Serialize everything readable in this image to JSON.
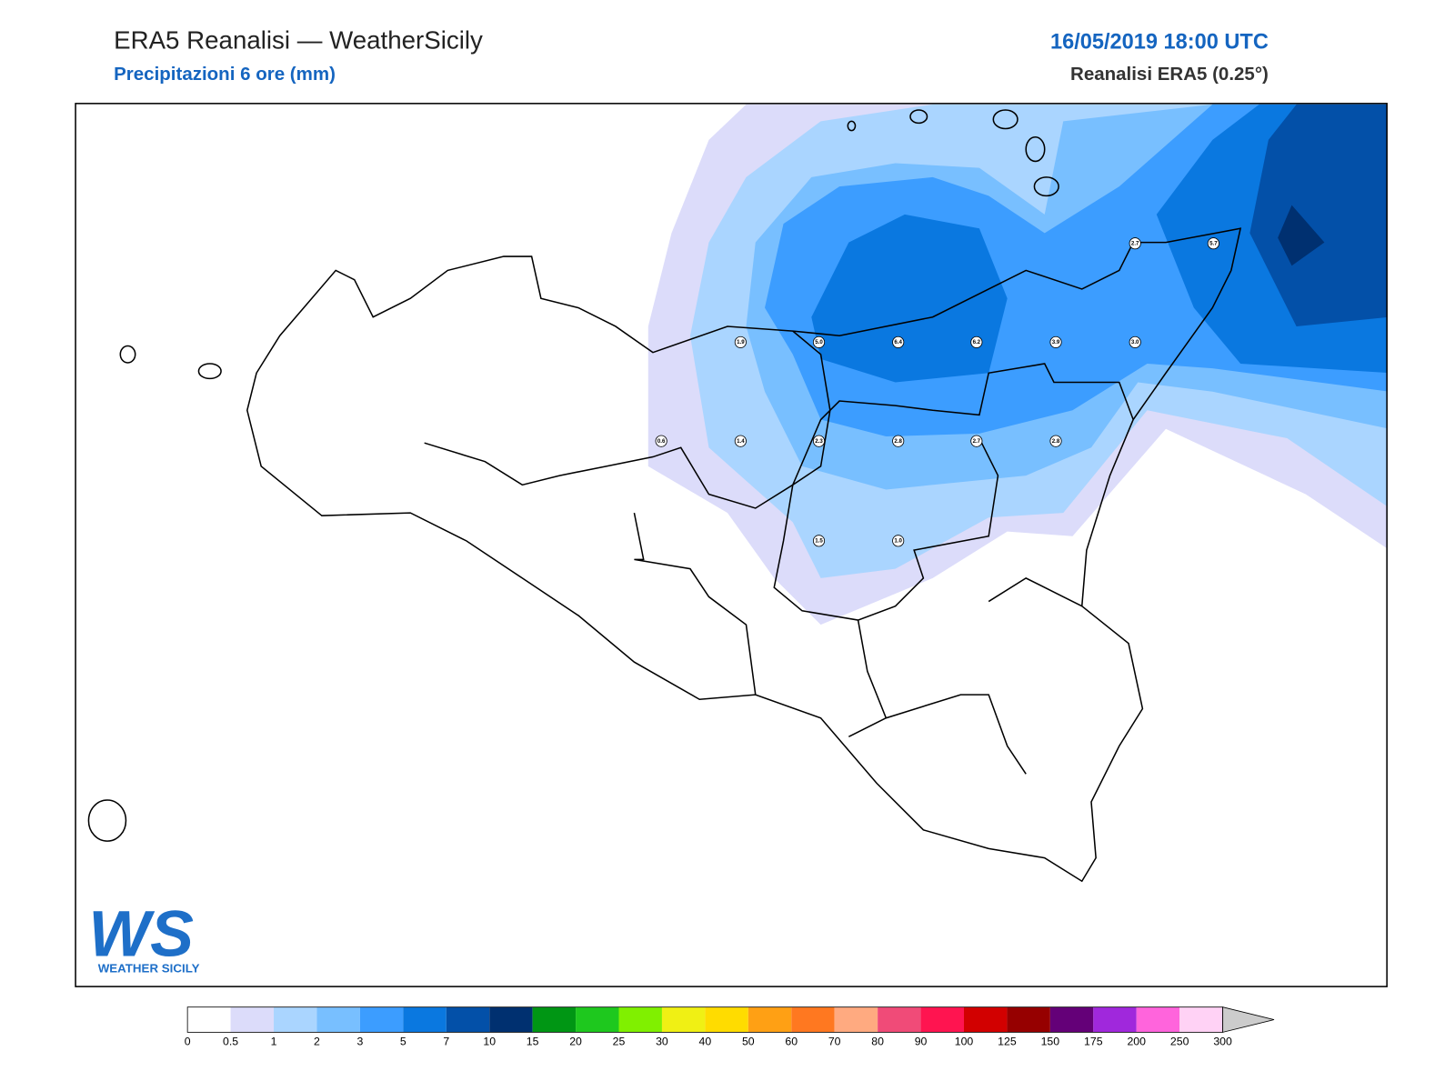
{
  "header": {
    "title": "ERA5 Reanalisi — WeatherSicily",
    "subtitle": "Precipitazioni 6 ore (mm)",
    "datetime": "16/05/2019 18:00 UTC",
    "source": "Reanalisi ERA5 (0.25°)"
  },
  "stations": [
    "2.7",
    "5.7",
    "1.9",
    "5.0",
    "6.4",
    "6.2",
    "3.9",
    "3.0",
    "0.6",
    "1.4",
    "2.3",
    "2.8",
    "2.7",
    "2.8",
    "1.5",
    "1.0"
  ],
  "colorbar": {
    "ticks": [
      0,
      0.5,
      1,
      2,
      3,
      5,
      7,
      10,
      15,
      20,
      25,
      30,
      40,
      50,
      60,
      70,
      80,
      90,
      100,
      125,
      150,
      175,
      200,
      250,
      300
    ],
    "colors": [
      "#ffffff",
      "#dcdcfa",
      "#aad5ff",
      "#78bfff",
      "#3c9dff",
      "#0a78e0",
      "#0350a8",
      "#003070",
      "#009614",
      "#1ec81e",
      "#80f000",
      "#f0f014",
      "#ffdc00",
      "#ffa014",
      "#ff7820",
      "#ffaa80",
      "#f04b78",
      "#ff1450",
      "#d20000",
      "#960000",
      "#640078",
      "#a028dc",
      "#ff64dc",
      "#ffd2f5"
    ],
    "extend_color": "#cccccc"
  },
  "logo": {
    "mark": "WS",
    "name": "WEATHER SICILY"
  }
}
